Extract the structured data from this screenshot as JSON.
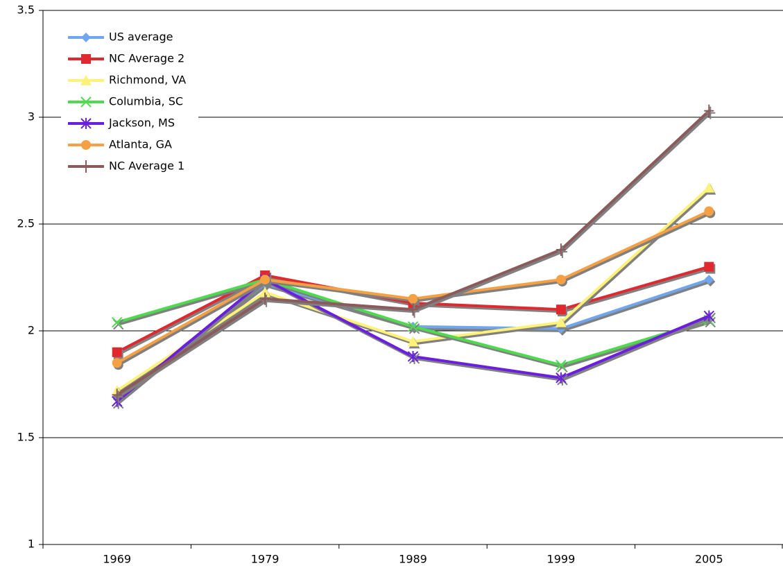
{
  "chart_data": {
    "type": "line",
    "categories": [
      "1969",
      "1979",
      "1989",
      "1999",
      "2005"
    ],
    "ylim": [
      1,
      3.5
    ],
    "yticks": [
      1,
      1.5,
      2,
      2.5,
      3,
      3.5
    ],
    "grid": true,
    "legend": "top-left",
    "series": [
      {
        "name": "US average",
        "color": "#6fa6ee",
        "marker": "diamond",
        "values": [
          1.69,
          2.22,
          2.02,
          2.01,
          2.24
        ]
      },
      {
        "name": "NC Average 2",
        "color": "#e0282f",
        "marker": "square",
        "values": [
          1.9,
          2.26,
          2.13,
          2.1,
          2.3
        ]
      },
      {
        "name": "Richmond, VA",
        "color": "#fff27a",
        "marker": "triangle",
        "values": [
          1.72,
          2.18,
          1.95,
          2.04,
          2.67
        ]
      },
      {
        "name": "Columbia, SC",
        "color": "#4fd94f",
        "marker": "x",
        "values": [
          2.04,
          2.24,
          2.02,
          1.84,
          2.05
        ]
      },
      {
        "name": "Jackson, MS",
        "color": "#6a1ee0",
        "marker": "star",
        "values": [
          1.67,
          2.24,
          1.88,
          1.78,
          2.07
        ]
      },
      {
        "name": "Atlanta, GA",
        "color": "#f5a044",
        "marker": "circle",
        "values": [
          1.85,
          2.24,
          2.15,
          2.24,
          2.56
        ]
      },
      {
        "name": "NC Average 1",
        "color": "#8b5a5a",
        "marker": "plus",
        "values": [
          1.7,
          2.15,
          2.1,
          2.38,
          3.03
        ]
      }
    ]
  }
}
